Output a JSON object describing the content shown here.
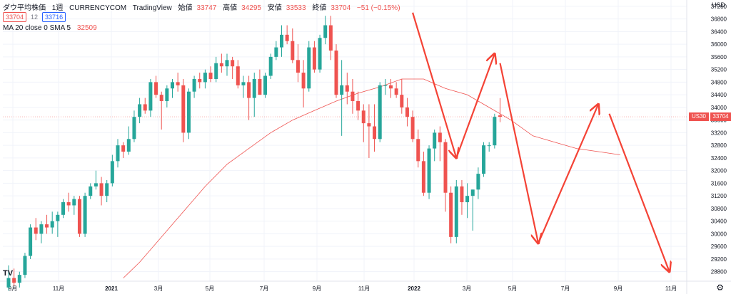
{
  "header": {
    "symbol": "ダウ平均株価",
    "interval": "1週",
    "source": "CURRENCYCOM",
    "platform": "TradingView",
    "open_label": "始値",
    "open_value": "33747",
    "high_label": "高値",
    "high_value": "34295",
    "low_label": "安値",
    "low_value": "33533",
    "close_label": "終値",
    "close_value": "33704",
    "change_value": "−51 (−0.15%)",
    "sell_price": "33704",
    "spread": "12",
    "buy_price": "33716",
    "indicator_label": "MA 20 close 0 SMA 5",
    "indicator_value": "32509"
  },
  "price_axis": {
    "currency": "USD",
    "ticks": [
      "37200",
      "36800",
      "36400",
      "36000",
      "35600",
      "35200",
      "34800",
      "34400",
      "34000",
      "33600",
      "33200",
      "32800",
      "32400",
      "32000",
      "31600",
      "31200",
      "30800",
      "30400",
      "30000",
      "29600",
      "29200",
      "28800"
    ],
    "symbol_tag": "US30",
    "last_price": "33704"
  },
  "time_axis": {
    "ticks": [
      "9月",
      "11月",
      "2021",
      "3月",
      "5月",
      "7月",
      "9月",
      "11月",
      "2022",
      "3月",
      "5月",
      "7月",
      "9月",
      "11月"
    ]
  },
  "colors": {
    "up": "#26a69a",
    "down": "#ef5350",
    "ma": "#ef5350",
    "arrows": "#f44336",
    "grid": "#f0f3fa"
  },
  "icons": {
    "logo": "tradingview-logo-icon",
    "settings": "gear-icon"
  },
  "chart_data": {
    "type": "candlestick",
    "title": "ダウ平均株価 1週 CURRENCYCOM",
    "ylim": [
      28500,
      37400
    ],
    "x_ticks": [
      "9月",
      "11月",
      "2021",
      "3月",
      "5月",
      "7月",
      "9月",
      "11月",
      "2022",
      "3月",
      "5月",
      "7月",
      "9月",
      "11月"
    ],
    "candles": [
      {
        "o": 28300,
        "h": 29000,
        "l": 28200,
        "c": 28600
      },
      {
        "o": 28600,
        "h": 28900,
        "l": 28350,
        "c": 28450
      },
      {
        "o": 28450,
        "h": 28800,
        "l": 28300,
        "c": 28700
      },
      {
        "o": 28700,
        "h": 29400,
        "l": 28600,
        "c": 29300
      },
      {
        "o": 29300,
        "h": 30300,
        "l": 29200,
        "c": 30200
      },
      {
        "o": 30200,
        "h": 30500,
        "l": 29800,
        "c": 30000
      },
      {
        "o": 30000,
        "h": 30400,
        "l": 29700,
        "c": 30300
      },
      {
        "o": 30300,
        "h": 30600,
        "l": 30000,
        "c": 30200
      },
      {
        "o": 30200,
        "h": 30700,
        "l": 30000,
        "c": 30400
      },
      {
        "o": 30400,
        "h": 30700,
        "l": 29900,
        "c": 30600
      },
      {
        "o": 30600,
        "h": 31100,
        "l": 30500,
        "c": 31000
      },
      {
        "o": 31000,
        "h": 31300,
        "l": 30700,
        "c": 30900
      },
      {
        "o": 30900,
        "h": 31200,
        "l": 30600,
        "c": 31100
      },
      {
        "o": 31100,
        "h": 31200,
        "l": 29900,
        "c": 30000
      },
      {
        "o": 30000,
        "h": 31300,
        "l": 29900,
        "c": 31200
      },
      {
        "o": 31200,
        "h": 31600,
        "l": 31100,
        "c": 31500
      },
      {
        "o": 31500,
        "h": 32000,
        "l": 31400,
        "c": 31600
      },
      {
        "o": 31600,
        "h": 31800,
        "l": 30900,
        "c": 31200
      },
      {
        "o": 31200,
        "h": 31700,
        "l": 31000,
        "c": 31600
      },
      {
        "o": 31600,
        "h": 32500,
        "l": 31500,
        "c": 32300
      },
      {
        "o": 32300,
        "h": 33000,
        "l": 32100,
        "c": 32800
      },
      {
        "o": 32800,
        "h": 32900,
        "l": 32400,
        "c": 32600
      },
      {
        "o": 32600,
        "h": 33400,
        "l": 32500,
        "c": 33000
      },
      {
        "o": 33000,
        "h": 33900,
        "l": 32900,
        "c": 33700
      },
      {
        "o": 33700,
        "h": 34300,
        "l": 33500,
        "c": 34100
      },
      {
        "o": 34100,
        "h": 34300,
        "l": 33800,
        "c": 33900
      },
      {
        "o": 33900,
        "h": 34900,
        "l": 33700,
        "c": 34800
      },
      {
        "o": 34800,
        "h": 35000,
        "l": 34300,
        "c": 34400
      },
      {
        "o": 34400,
        "h": 34500,
        "l": 33300,
        "c": 34200
      },
      {
        "o": 34200,
        "h": 34700,
        "l": 34000,
        "c": 34600
      },
      {
        "o": 34600,
        "h": 34900,
        "l": 34300,
        "c": 34800
      },
      {
        "o": 34800,
        "h": 35100,
        "l": 34500,
        "c": 34700
      },
      {
        "o": 34700,
        "h": 34900,
        "l": 32900,
        "c": 33200
      },
      {
        "o": 33200,
        "h": 34600,
        "l": 33000,
        "c": 34500
      },
      {
        "o": 34500,
        "h": 35000,
        "l": 34300,
        "c": 34900
      },
      {
        "o": 34900,
        "h": 35100,
        "l": 34600,
        "c": 34800
      },
      {
        "o": 34800,
        "h": 35200,
        "l": 34600,
        "c": 35100
      },
      {
        "o": 35100,
        "h": 35300,
        "l": 34800,
        "c": 34900
      },
      {
        "o": 34900,
        "h": 35600,
        "l": 34800,
        "c": 35400
      },
      {
        "o": 35400,
        "h": 35700,
        "l": 35100,
        "c": 35300
      },
      {
        "o": 35300,
        "h": 35700,
        "l": 35000,
        "c": 35500
      },
      {
        "o": 35500,
        "h": 35600,
        "l": 34900,
        "c": 35300
      },
      {
        "o": 35300,
        "h": 35500,
        "l": 34600,
        "c": 34700
      },
      {
        "o": 34700,
        "h": 35000,
        "l": 34300,
        "c": 34800
      },
      {
        "o": 34800,
        "h": 35000,
        "l": 33600,
        "c": 34300
      },
      {
        "o": 34300,
        "h": 35100,
        "l": 33700,
        "c": 34900
      },
      {
        "o": 34900,
        "h": 35200,
        "l": 34400,
        "c": 34400
      },
      {
        "o": 34400,
        "h": 35100,
        "l": 34300,
        "c": 35000
      },
      {
        "o": 35000,
        "h": 35700,
        "l": 34900,
        "c": 35600
      },
      {
        "o": 35600,
        "h": 36100,
        "l": 35500,
        "c": 35900
      },
      {
        "o": 35900,
        "h": 36600,
        "l": 35600,
        "c": 36300
      },
      {
        "o": 36300,
        "h": 36600,
        "l": 36000,
        "c": 36100
      },
      {
        "o": 36100,
        "h": 36500,
        "l": 35400,
        "c": 35500
      },
      {
        "o": 35500,
        "h": 36000,
        "l": 34800,
        "c": 35100
      },
      {
        "o": 35100,
        "h": 35500,
        "l": 34000,
        "c": 34600
      },
      {
        "o": 34600,
        "h": 36100,
        "l": 34500,
        "c": 35900
      },
      {
        "o": 35900,
        "h": 36100,
        "l": 35100,
        "c": 35200
      },
      {
        "o": 35200,
        "h": 36300,
        "l": 35100,
        "c": 36200
      },
      {
        "o": 36200,
        "h": 36900,
        "l": 36000,
        "c": 36600
      },
      {
        "o": 36600,
        "h": 36900,
        "l": 35500,
        "c": 35800
      },
      {
        "o": 35800,
        "h": 36000,
        "l": 34300,
        "c": 34400
      },
      {
        "o": 34400,
        "h": 35500,
        "l": 33100,
        "c": 34700
      },
      {
        "o": 34700,
        "h": 35100,
        "l": 34100,
        "c": 34500
      },
      {
        "o": 34500,
        "h": 34900,
        "l": 33800,
        "c": 34200
      },
      {
        "o": 34200,
        "h": 34500,
        "l": 33600,
        "c": 33900
      },
      {
        "o": 33900,
        "h": 34100,
        "l": 32900,
        "c": 33500
      },
      {
        "o": 33500,
        "h": 34100,
        "l": 32400,
        "c": 33400
      },
      {
        "o": 33400,
        "h": 34100,
        "l": 32600,
        "c": 33000
      },
      {
        "o": 33000,
        "h": 34800,
        "l": 32900,
        "c": 34700
      },
      {
        "o": 34700,
        "h": 34900,
        "l": 34400,
        "c": 34700
      },
      {
        "o": 34700,
        "h": 34900,
        "l": 34300,
        "c": 34600
      },
      {
        "o": 34600,
        "h": 34800,
        "l": 34300,
        "c": 34400
      },
      {
        "o": 34400,
        "h": 34900,
        "l": 33800,
        "c": 34000
      },
      {
        "o": 34000,
        "h": 34300,
        "l": 33400,
        "c": 33700
      },
      {
        "o": 33700,
        "h": 33900,
        "l": 32900,
        "c": 33000
      },
      {
        "o": 33000,
        "h": 33300,
        "l": 32100,
        "c": 32300
      },
      {
        "o": 32300,
        "h": 32600,
        "l": 31200,
        "c": 31300
      },
      {
        "o": 31300,
        "h": 32800,
        "l": 31100,
        "c": 32700
      },
      {
        "o": 32700,
        "h": 33300,
        "l": 32300,
        "c": 33200
      },
      {
        "o": 33200,
        "h": 33400,
        "l": 32300,
        "c": 32900
      },
      {
        "o": 32900,
        "h": 33000,
        "l": 30700,
        "c": 31300
      },
      {
        "o": 31300,
        "h": 31500,
        "l": 29700,
        "c": 29900
      },
      {
        "o": 29900,
        "h": 31700,
        "l": 29700,
        "c": 31500
      },
      {
        "o": 31500,
        "h": 31700,
        "l": 30600,
        "c": 31000
      },
      {
        "o": 31000,
        "h": 31600,
        "l": 30500,
        "c": 31200
      },
      {
        "o": 31200,
        "h": 31400,
        "l": 30100,
        "c": 31400
      },
      {
        "o": 31400,
        "h": 32100,
        "l": 31100,
        "c": 31900
      },
      {
        "o": 31900,
        "h": 32900,
        "l": 31800,
        "c": 32800
      },
      {
        "o": 32800,
        "h": 32900,
        "l": 32600,
        "c": 32800
      },
      {
        "o": 32800,
        "h": 33800,
        "l": 32700,
        "c": 33700
      },
      {
        "o": 33747,
        "h": 34295,
        "l": 33533,
        "c": 33704
      }
    ],
    "ma": [
      {
        "i": 21,
        "v": 28600
      },
      {
        "i": 24,
        "v": 29100
      },
      {
        "i": 27,
        "v": 29700
      },
      {
        "i": 30,
        "v": 30300
      },
      {
        "i": 33,
        "v": 30900
      },
      {
        "i": 36,
        "v": 31500
      },
      {
        "i": 40,
        "v": 32200
      },
      {
        "i": 44,
        "v": 32700
      },
      {
        "i": 48,
        "v": 33200
      },
      {
        "i": 52,
        "v": 33600
      },
      {
        "i": 56,
        "v": 33900
      },
      {
        "i": 60,
        "v": 34200
      },
      {
        "i": 64,
        "v": 34450
      },
      {
        "i": 68,
        "v": 34650
      },
      {
        "i": 72,
        "v": 34900
      },
      {
        "i": 76,
        "v": 34900
      },
      {
        "i": 80,
        "v": 34600
      },
      {
        "i": 84,
        "v": 34400
      },
      {
        "i": 88,
        "v": 34000
      },
      {
        "i": 92,
        "v": 33600
      },
      {
        "i": 96,
        "v": 33100
      },
      {
        "i": 100,
        "v": 32900
      },
      {
        "i": 104,
        "v": 32700
      },
      {
        "i": 108,
        "v": 32600
      },
      {
        "i": 112,
        "v": 32500
      }
    ],
    "annotations": [
      {
        "type": "arrow",
        "from": {
          "i": 74,
          "v": 37000
        },
        "to": {
          "i": 82,
          "v": 32400
        }
      },
      {
        "type": "arrow",
        "from": {
          "i": 82,
          "v": 32400
        },
        "to": {
          "i": 89,
          "v": 35700
        }
      },
      {
        "type": "arrow",
        "from": {
          "i": 90,
          "v": 35400
        },
        "to": {
          "i": 97,
          "v": 29700
        }
      },
      {
        "type": "arrow",
        "from": {
          "i": 97,
          "v": 29700
        },
        "to": {
          "i": 108,
          "v": 34100
        }
      },
      {
        "type": "arrow",
        "from": {
          "i": 110,
          "v": 33800
        },
        "to": {
          "i": 121,
          "v": 28800
        }
      }
    ]
  }
}
